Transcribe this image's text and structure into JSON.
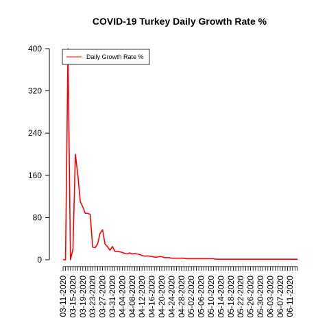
{
  "chart_data": {
    "type": "line",
    "title": "COVID-19 Turkey Daily Growth Rate %",
    "xlabel": "",
    "ylabel": "",
    "ylim": [
      0,
      400
    ],
    "yticks": [
      0,
      80,
      160,
      240,
      320,
      400
    ],
    "grid": false,
    "legend_position": "top-left",
    "x_start": "03-11-2020",
    "x_end": "06-14-2020",
    "x_tick_labels": [
      "03-11-2020",
      "03-15-2020",
      "03-19-2020",
      "03-23-2020",
      "03-27-2020",
      "03-31-2020",
      "04-04-2020",
      "04-08-2020",
      "04-12-2020",
      "04-16-2020",
      "04-20-2020",
      "04-24-2020",
      "04-28-2020",
      "05-02-2020",
      "05-06-2020",
      "05-10-2020",
      "05-14-2020",
      "05-18-2020",
      "05-22-2020",
      "05-26-2020",
      "05-30-2020",
      "06-03-2020",
      "06-07-2020",
      "06-11-2020"
    ],
    "series": [
      {
        "name": "Daily Growth Rate %",
        "color": "#ff0000",
        "values": [
          0,
          0,
          400,
          0,
          20,
          200,
          160,
          110,
          100,
          88,
          88,
          86,
          24,
          23,
          30,
          50,
          57,
          30,
          25,
          18,
          25,
          16,
          16,
          15,
          14,
          12,
          11,
          13,
          11,
          12,
          11,
          10,
          8,
          7,
          7,
          7,
          6,
          5,
          5,
          6,
          6,
          4,
          4,
          4,
          3,
          3,
          3,
          3,
          3,
          3,
          2,
          2,
          2,
          2,
          2,
          2,
          2,
          2,
          2,
          2,
          2,
          2,
          1,
          1,
          1,
          1,
          1,
          1,
          1,
          1,
          1,
          1,
          1,
          1,
          1,
          1,
          1,
          1,
          1,
          1,
          1,
          1,
          1,
          1,
          1,
          1,
          1,
          1,
          1,
          1,
          1,
          1,
          1,
          1,
          1,
          1
        ]
      }
    ]
  }
}
